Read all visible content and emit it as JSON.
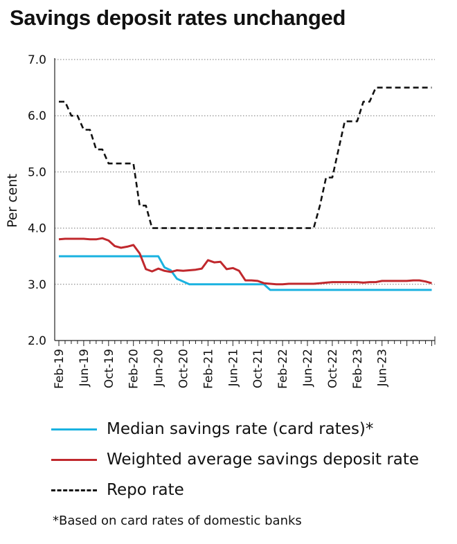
{
  "title": "Savings deposit rates unchanged",
  "footnote": "*Based on card rates of domestic banks",
  "chart_data": {
    "type": "line",
    "title": "Savings deposit rates unchanged",
    "ylabel": "Per cent",
    "xlabel": "",
    "ylim": [
      2.0,
      7.0
    ],
    "yticks": [
      "2.0",
      "3.0",
      "4.0",
      "5.0",
      "6.0",
      "7.0"
    ],
    "x_start": "2019-02",
    "x_tick_labels": [
      "Feb-19",
      "Jun-19",
      "Oct-19",
      "Feb-20",
      "Jun-20",
      "Oct-20",
      "Feb-21",
      "Jun-21",
      "Oct-21",
      "Feb-22",
      "Jun-22",
      "Oct-22",
      "Feb-23",
      "Jun-23"
    ],
    "grid": "horizontal dotted",
    "legend_position": "bottom",
    "series": [
      {
        "name": "Median savings rate (card rates)*",
        "color": "#1ab2e0",
        "style": "solid",
        "values": [
          3.5,
          3.5,
          3.5,
          3.5,
          3.5,
          3.5,
          3.5,
          3.5,
          3.5,
          3.5,
          3.5,
          3.5,
          3.5,
          3.5,
          3.5,
          3.5,
          3.5,
          3.3,
          3.25,
          3.1,
          3.05,
          3.0,
          3.0,
          3.0,
          3.0,
          3.0,
          3.0,
          3.0,
          3.0,
          3.0,
          3.0,
          3.0,
          3.0,
          3.0,
          2.9,
          2.9,
          2.9,
          2.9,
          2.9,
          2.9,
          2.9,
          2.9,
          2.9,
          2.9,
          2.9,
          2.9,
          2.9,
          2.9,
          2.9,
          2.9,
          2.9,
          2.9,
          2.9,
          2.9,
          2.9,
          2.9,
          2.9,
          2.9,
          2.9,
          2.9,
          2.9
        ]
      },
      {
        "name": "Weighted average savings deposit rate",
        "color": "#c0282d",
        "style": "solid",
        "values": [
          3.8,
          3.81,
          3.81,
          3.81,
          3.81,
          3.8,
          3.8,
          3.82,
          3.78,
          3.68,
          3.65,
          3.67,
          3.7,
          3.55,
          3.27,
          3.23,
          3.28,
          3.24,
          3.22,
          3.25,
          3.24,
          3.25,
          3.26,
          3.28,
          3.43,
          3.39,
          3.4,
          3.27,
          3.29,
          3.24,
          3.07,
          3.07,
          3.06,
          3.02,
          3.01,
          3.0,
          3.0,
          3.01,
          3.01,
          3.01,
          3.01,
          3.01,
          3.02,
          3.03,
          3.04,
          3.04,
          3.04,
          3.04,
          3.04,
          3.03,
          3.04,
          3.04,
          3.06,
          3.06,
          3.06,
          3.06,
          3.06,
          3.07,
          3.07,
          3.05,
          3.02
        ]
      },
      {
        "name": "Repo rate",
        "color": "#111111",
        "style": "dashed",
        "values": [
          6.25,
          6.25,
          6.0,
          6.0,
          5.75,
          5.75,
          5.4,
          5.4,
          5.15,
          5.15,
          5.15,
          5.15,
          5.15,
          4.4,
          4.4,
          4.0,
          4.0,
          4.0,
          4.0,
          4.0,
          4.0,
          4.0,
          4.0,
          4.0,
          4.0,
          4.0,
          4.0,
          4.0,
          4.0,
          4.0,
          4.0,
          4.0,
          4.0,
          4.0,
          4.0,
          4.0,
          4.0,
          4.0,
          4.0,
          4.0,
          4.0,
          4.0,
          4.4,
          4.9,
          4.9,
          5.4,
          5.9,
          5.9,
          5.9,
          6.25,
          6.25,
          6.5,
          6.5,
          6.5,
          6.5,
          6.5,
          6.5,
          6.5,
          6.5,
          6.5,
          6.5
        ]
      }
    ]
  }
}
